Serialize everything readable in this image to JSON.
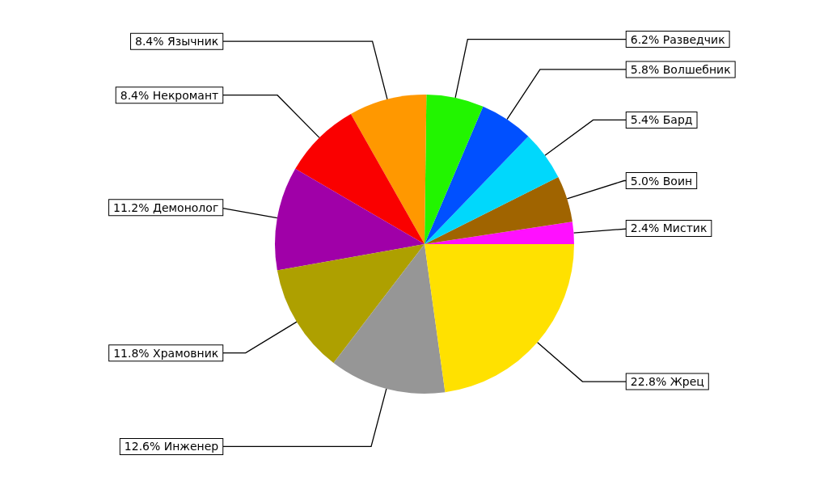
{
  "chart_data": {
    "type": "pie",
    "categories": [
      "Мистик",
      "Воин",
      "Бард",
      "Волшебник",
      "Разведчик",
      "Язычник",
      "Некромант",
      "Демонолог",
      "Храмовник",
      "Инженер",
      "Жрец"
    ],
    "values": [
      2.4,
      5.0,
      5.4,
      5.8,
      6.2,
      8.4,
      8.4,
      11.2,
      11.8,
      12.6,
      22.8
    ],
    "value_labels": [
      "2.4%",
      "5.0%",
      "5.4%",
      "5.8%",
      "6.2%",
      "8.4%",
      "8.4%",
      "11.2%",
      "11.8%",
      "12.6%",
      "22.8%"
    ],
    "colors": [
      "#ff10ff",
      "#a06400",
      "#00d8fc",
      "#0050ff",
      "#22f500",
      "#ff9800",
      "#fa0000",
      "#a000a8",
      "#aea000",
      "#969696",
      "#ffe100"
    ],
    "legend": false
  }
}
